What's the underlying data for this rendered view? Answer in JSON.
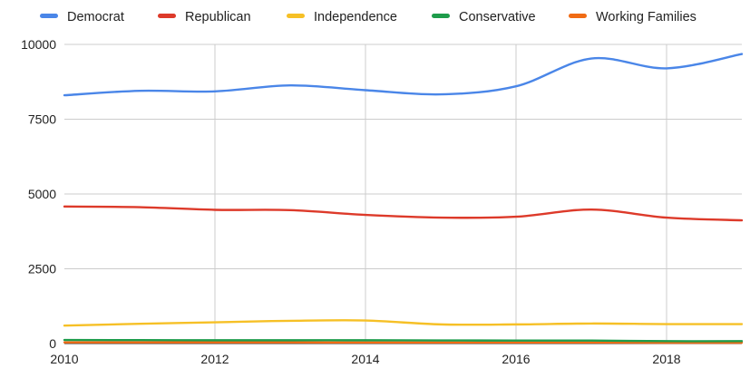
{
  "chart_data": {
    "type": "line",
    "title": "",
    "xlabel": "",
    "ylabel": "",
    "x": [
      2010,
      2011,
      2012,
      2013,
      2014,
      2015,
      2016,
      2017,
      2018,
      2019
    ],
    "xlim": [
      2010,
      2019
    ],
    "ylim": [
      0,
      10000
    ],
    "x_ticks": [
      "2010",
      "2012",
      "2014",
      "2016",
      "2018"
    ],
    "y_ticks": [
      "0",
      "2500",
      "5000",
      "7500",
      "10000"
    ],
    "grid": true,
    "legend_position": "top",
    "series": [
      {
        "name": "Democrat",
        "color": "#4a86e8",
        "values": [
          8300,
          8450,
          8430,
          8630,
          8470,
          8330,
          8600,
          9530,
          9200,
          9680
        ]
      },
      {
        "name": "Republican",
        "color": "#dd3a2a",
        "values": [
          4580,
          4560,
          4470,
          4460,
          4300,
          4210,
          4240,
          4480,
          4210,
          4120
        ]
      },
      {
        "name": "Independence",
        "color": "#f6c026",
        "values": [
          600,
          660,
          710,
          760,
          770,
          640,
          640,
          670,
          650,
          650
        ]
      },
      {
        "name": "Conservative",
        "color": "#1e9c4b",
        "values": [
          120,
          115,
          110,
          110,
          110,
          105,
          100,
          100,
          80,
          80
        ]
      },
      {
        "name": "Working Families",
        "color": "#f06b14",
        "values": [
          40,
          40,
          40,
          40,
          35,
          35,
          35,
          35,
          30,
          30
        ]
      }
    ]
  }
}
